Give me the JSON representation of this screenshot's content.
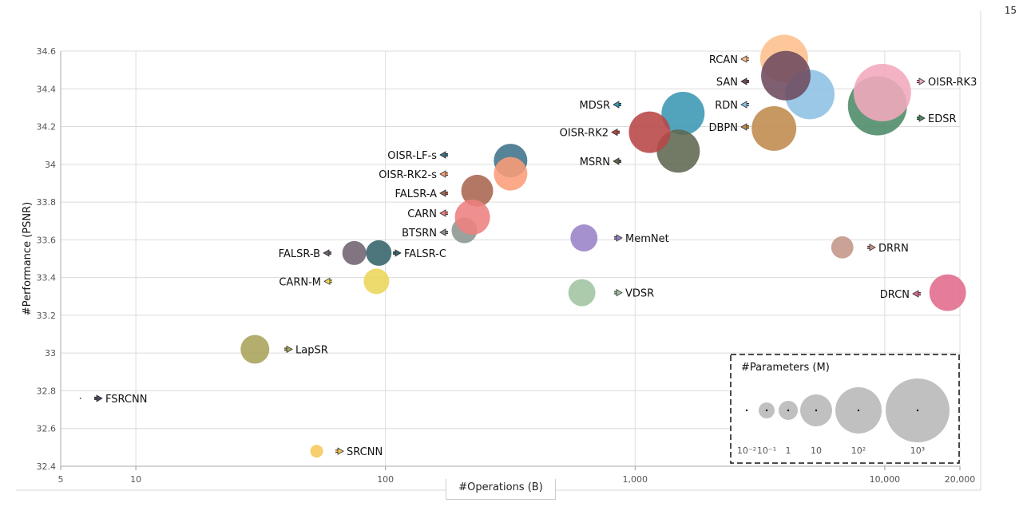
{
  "page_number": "15",
  "chart_data": {
    "type": "scatter",
    "subtype": "bubble",
    "xlabel": "#Operations (B)",
    "ylabel": "#Performance (PSNR)",
    "x_scale": "log",
    "xlim": [
      5,
      20000
    ],
    "ylim": [
      32.4,
      34.6
    ],
    "x_ticks": [
      "5",
      "10",
      "100",
      "1,000",
      "10,000",
      "20,000"
    ],
    "x_tick_values": [
      5,
      10,
      100,
      1000,
      10000,
      20000
    ],
    "y_ticks": [
      "34.6",
      "34.4",
      "34.2",
      "34",
      "33.8",
      "33.6",
      "33.4",
      "33.2",
      "33",
      "32.8",
      "32.6",
      "32.4"
    ],
    "grid": true,
    "size_legend": {
      "title": "#Parameters (M)",
      "placement": "bottom-right",
      "labels": [
        "10⁻²",
        "10⁻¹",
        "1",
        "10",
        "10²",
        "10³"
      ],
      "values": [
        0.01,
        0.1,
        1,
        10,
        100,
        1000
      ]
    },
    "points": [
      {
        "name": "FSRCNN",
        "x": 6,
        "y": 32.76,
        "params": 0.01,
        "color": "#4a4a5a",
        "label_side": "right"
      },
      {
        "name": "SRCNN",
        "x": 53,
        "y": 32.48,
        "params": 0.06,
        "color": "#f6c85a",
        "label_side": "right"
      },
      {
        "name": "LapSR",
        "x": 30,
        "y": 33.02,
        "params": 4.4,
        "color": "#a8a25a",
        "label_side": "right"
      },
      {
        "name": "CARN-M",
        "x": 92,
        "y": 33.38,
        "params": 2.7,
        "color": "#ecd659",
        "label_side": "left"
      },
      {
        "name": "FALSR-B",
        "x": 75,
        "y": 33.53,
        "params": 2.1,
        "color": "#6f6270",
        "label_side": "left"
      },
      {
        "name": "FALSR-C",
        "x": 94,
        "y": 33.53,
        "params": 2.7,
        "color": "#34636a",
        "label_side": "right"
      },
      {
        "name": "BTSRN",
        "x": 207,
        "y": 33.65,
        "params": 2.7,
        "color": "#8c9590",
        "label_side": "left"
      },
      {
        "name": "FALSR-A",
        "x": 233,
        "y": 33.86,
        "params": 7.2,
        "color": "#a8654f",
        "label_side": "left"
      },
      {
        "name": "CARN",
        "x": 223,
        "y": 33.72,
        "params": 12,
        "color": "#ee8080",
        "label_side": "left"
      },
      {
        "name": "OISR-LF-s",
        "x": 317,
        "y": 34.02,
        "params": 9.3,
        "color": "#3e7289",
        "label_side": "left"
      },
      {
        "name": "OISR-RK2-s",
        "x": 317,
        "y": 33.95,
        "params": 9.3,
        "color": "#fa9d77",
        "label_side": "left"
      },
      {
        "name": "MemNet",
        "x": 624,
        "y": 33.61,
        "params": 3.4,
        "color": "#9a82c8",
        "label_side": "right"
      },
      {
        "name": "VDSR",
        "x": 612,
        "y": 33.32,
        "params": 3.4,
        "color": "#9fc4a0",
        "label_side": "right"
      },
      {
        "name": "MDSR",
        "x": 1556,
        "y": 34.27,
        "params": 41,
        "color": "#3a97b3",
        "label_side": "left"
      },
      {
        "name": "MSRN",
        "x": 1489,
        "y": 34.07,
        "params": 41,
        "color": "#5f6650",
        "label_side": "left"
      },
      {
        "name": "OISR-RK2",
        "x": 1143,
        "y": 34.17,
        "params": 32,
        "color": "#b84646",
        "label_side": "left"
      },
      {
        "name": "DBPN",
        "x": 3600,
        "y": 34.19,
        "params": 52,
        "color": "#c08a4c",
        "label_side": "left"
      },
      {
        "name": "RCAN",
        "x": 3954,
        "y": 34.56,
        "params": 86,
        "color": "#fdbf8c",
        "label_side": "left"
      },
      {
        "name": "RDN",
        "x": 5010,
        "y": 34.37,
        "params": 110,
        "color": "#8cc0e3",
        "label_side": "left"
      },
      {
        "name": "SAN",
        "x": 4016,
        "y": 34.47,
        "params": 110,
        "color": "#6d4a5e",
        "label_side": "left"
      },
      {
        "name": "EDSR",
        "x": 9350,
        "y": 34.31,
        "params": 490,
        "color": "#4b8a68",
        "label_side": "right"
      },
      {
        "name": "OISR-RK3",
        "x": 9780,
        "y": 34.38,
        "params": 380,
        "color": "#f3a8bd",
        "label_side": "right"
      },
      {
        "name": "DRRN",
        "x": 6760,
        "y": 33.56,
        "params": 1.6,
        "color": "#c49588",
        "label_side": "right"
      },
      {
        "name": "DRCN",
        "x": 17870,
        "y": 33.32,
        "params": 15,
        "color": "#e06a8c",
        "label_side": "left"
      }
    ]
  }
}
